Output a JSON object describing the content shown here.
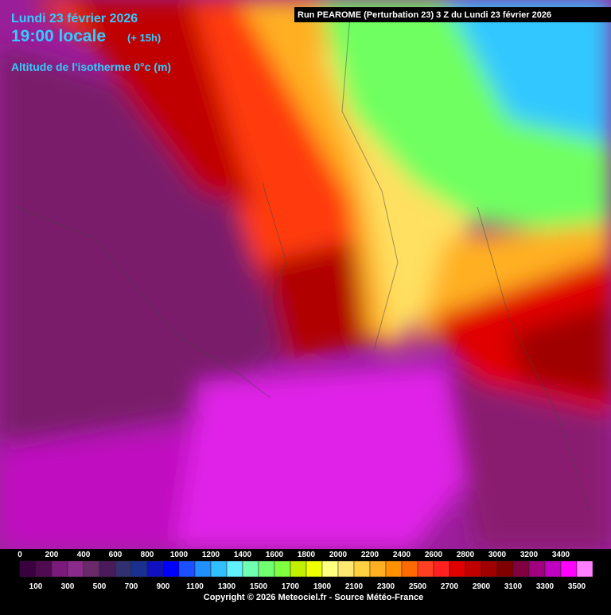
{
  "header": {
    "date": "Lundi 23 février 2026",
    "time": "19:00 locale",
    "lead": "(+ 15h)",
    "parameter": "Altitude de l'isotherme 0°c (m)",
    "run": "Run PEAROME (Perturbation 23) 3 Z du Lundi 23 février 2026"
  },
  "legend": {
    "labels_top": [
      0,
      200,
      400,
      600,
      800,
      1000,
      1200,
      1400,
      1600,
      1800,
      2000,
      2200,
      2400,
      2600,
      2800,
      3000,
      3200,
      3400
    ],
    "labels_bottom": [
      100,
      300,
      500,
      700,
      900,
      1100,
      1300,
      1500,
      1700,
      1900,
      2100,
      2300,
      2500,
      2700,
      2900,
      3100,
      3300,
      3500
    ],
    "colors": [
      "#3a0040",
      "#500a50",
      "#7a1a7a",
      "#8a2a8a",
      "#6a2a6a",
      "#4a1a5a",
      "#303070",
      "#1a3090",
      "#1010c0",
      "#0000ff",
      "#1a50ff",
      "#2090ff",
      "#30c0ff",
      "#60f0ff",
      "#70ffb0",
      "#70ff70",
      "#80ff40",
      "#c0f000",
      "#f0ff00",
      "#ffff80",
      "#ffe870",
      "#ffd040",
      "#ffb020",
      "#ff9000",
      "#ff6a00",
      "#ff4020",
      "#ff2020",
      "#e00000",
      "#c00000",
      "#a00000",
      "#800000",
      "#800040",
      "#a00080",
      "#c000c0",
      "#ff00ff",
      "#ff80ff"
    ]
  },
  "footer": {
    "copyright": "Copyright © 2026 Meteociel.fr - Source Météo-France"
  }
}
